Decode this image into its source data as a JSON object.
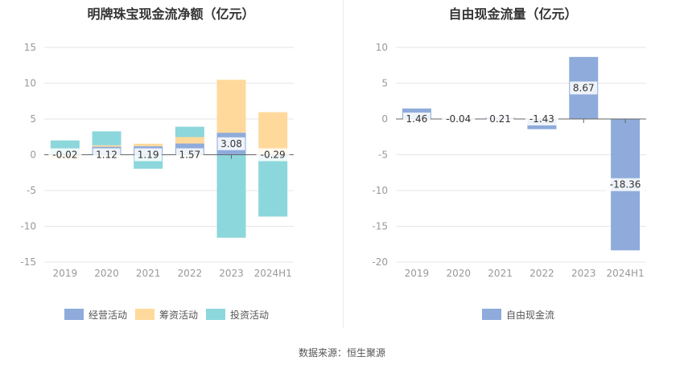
{
  "colors": {
    "operating": "#8eabdb",
    "financing": "#ffd99c",
    "investing": "#8cd7db",
    "fcf": "#8eabdb",
    "grid": "#e6e6e6",
    "axis": "#999999"
  },
  "footer": {
    "source": "数据来源：恒生聚源"
  },
  "chart_data": [
    {
      "type": "bar",
      "stacked": true,
      "title": "明牌珠宝现金流净额（亿元）",
      "categories": [
        "2019",
        "2020",
        "2021",
        "2022",
        "2023",
        "2024H1"
      ],
      "ylim": [
        -15,
        15
      ],
      "yticks": [
        15,
        10,
        5,
        0,
        -5,
        -10,
        -15
      ],
      "grid": true,
      "legend_position": "bottom",
      "series": [
        {
          "name": "经营活动",
          "values": [
            -0.02,
            1.12,
            1.19,
            1.57,
            3.08,
            -0.29
          ],
          "color": "#8eabdb",
          "labeled": true
        },
        {
          "name": "筹资活动",
          "values": [
            -0.6,
            0.2,
            0.35,
            0.9,
            7.4,
            5.95
          ],
          "color": "#ffd99c"
        },
        {
          "name": "投资活动",
          "values": [
            2.0,
            1.95,
            -1.95,
            1.45,
            -11.6,
            -8.35
          ],
          "color": "#8cd7db"
        }
      ]
    },
    {
      "type": "bar",
      "title": "自由现金流量（亿元）",
      "categories": [
        "2019",
        "2020",
        "2021",
        "2022",
        "2023",
        "2024H1"
      ],
      "ylim": [
        -20,
        10
      ],
      "yticks": [
        10,
        5,
        0,
        -5,
        -10,
        -15,
        -20
      ],
      "grid": true,
      "legend_position": "bottom",
      "series": [
        {
          "name": "自由现金流",
          "values": [
            1.46,
            -0.04,
            0.21,
            -1.43,
            8.67,
            -18.36
          ],
          "color": "#8eabdb",
          "labeled": true
        }
      ]
    }
  ]
}
